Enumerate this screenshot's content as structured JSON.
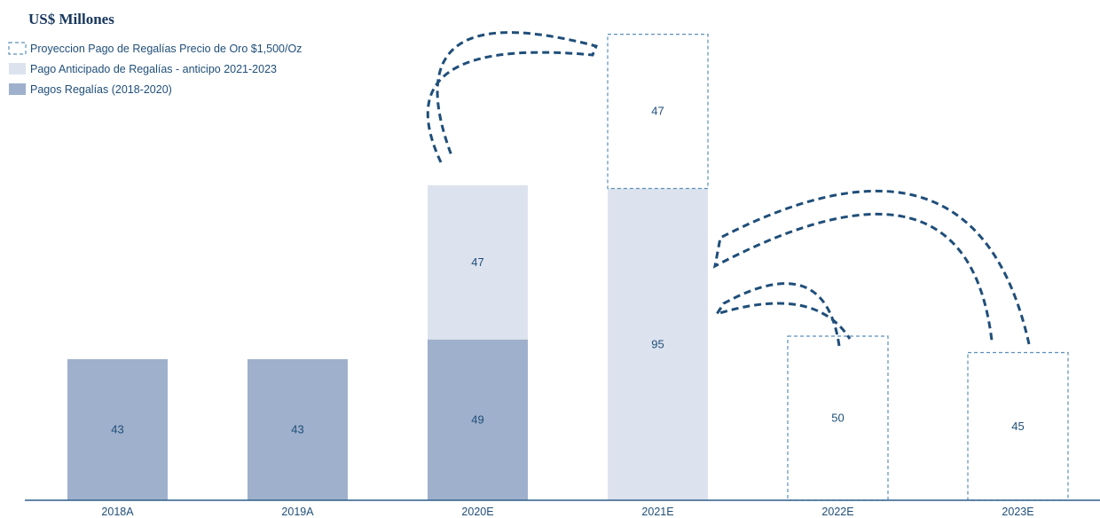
{
  "chart_data": {
    "type": "bar",
    "title": "US$ Millones",
    "categories": [
      "2018A",
      "2019A",
      "2020E",
      "2021E",
      "2022E",
      "2023E"
    ],
    "series": [
      {
        "name": "Pagos Regalías  (2018-2020)",
        "style": "solid",
        "color": "#9fb0cc",
        "values": [
          43,
          43,
          49,
          0,
          0,
          0
        ]
      },
      {
        "name": "Pago Anticipado de Regalías  - anticipo 2021-2023",
        "style": "solid",
        "color": "#dde3ee",
        "values": [
          0,
          0,
          47,
          95,
          0,
          0
        ]
      },
      {
        "name": "Proyeccion Pago de Regalías  Precio de Oro $1,500/Oz",
        "style": "dashed-outline",
        "color": "#5b8fb9",
        "values": [
          0,
          0,
          0,
          47,
          50,
          45
        ]
      }
    ],
    "legend_position": "top-left",
    "grid": false,
    "colors": {
      "text": "#1f4e79",
      "arrow": "#1f4e79",
      "axis": "#2e5f8a"
    }
  }
}
